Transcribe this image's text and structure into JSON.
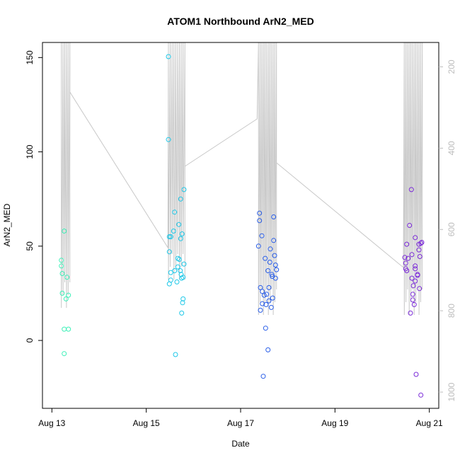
{
  "chart_data": {
    "type": "scatter",
    "title": "ATOM1 Northbound ArN2_MED",
    "xlabel": "Date",
    "ylabel": "ArN2_MED",
    "x_ticks": [
      "Aug 13",
      "Aug 15",
      "Aug 17",
      "Aug 19",
      "Aug 21"
    ],
    "y_ticks": [
      0,
      50,
      100,
      150
    ],
    "y2_ticks": [
      200,
      400,
      600,
      800,
      1000
    ],
    "xlim_days": [
      12.8,
      21.2
    ],
    "ylim": [
      -36,
      158
    ],
    "y2lim": [
      1040,
      140
    ],
    "colors": {
      "axis": "#000000",
      "secondary_axis": "#bdbdbd",
      "depth_line": "#c8c8c8"
    },
    "scatter": [
      {
        "color": "#3ef0b8",
        "points": [
          [
            13.2,
            42.5
          ],
          [
            13.2,
            39.5
          ],
          [
            13.22,
            35.5
          ],
          [
            13.22,
            25
          ],
          [
            13.26,
            58
          ],
          [
            13.26,
            6
          ],
          [
            13.26,
            -7
          ],
          [
            13.3,
            22
          ],
          [
            13.32,
            33.5
          ],
          [
            13.35,
            6
          ],
          [
            13.35,
            24
          ]
        ]
      },
      {
        "color": "#1ec8e8",
        "points": [
          [
            15.47,
            150.5
          ],
          [
            15.47,
            106.5
          ],
          [
            15.49,
            55
          ],
          [
            15.49,
            47
          ],
          [
            15.49,
            30
          ],
          [
            15.52,
            55
          ],
          [
            15.52,
            36
          ],
          [
            15.52,
            32
          ],
          [
            15.58,
            58
          ],
          [
            15.6,
            68
          ],
          [
            15.6,
            37
          ],
          [
            15.62,
            -7.5
          ],
          [
            15.65,
            31
          ],
          [
            15.67,
            43.5
          ],
          [
            15.67,
            39
          ],
          [
            15.69,
            61.5
          ],
          [
            15.7,
            43
          ],
          [
            15.72,
            37
          ],
          [
            15.73,
            54
          ],
          [
            15.73,
            75
          ],
          [
            15.74,
            35
          ],
          [
            15.75,
            33
          ],
          [
            15.75,
            14.5
          ],
          [
            15.76,
            56.5
          ],
          [
            15.77,
            20
          ],
          [
            15.78,
            22
          ],
          [
            15.8,
            80
          ],
          [
            15.8,
            40.5
          ],
          [
            15.78,
            33.5
          ]
        ]
      },
      {
        "color": "#2a5ee8",
        "points": [
          [
            17.38,
            50
          ],
          [
            17.4,
            67.5
          ],
          [
            17.4,
            63.5
          ],
          [
            17.42,
            16
          ],
          [
            17.42,
            28
          ],
          [
            17.45,
            55.5
          ],
          [
            17.46,
            26
          ],
          [
            17.46,
            19.5
          ],
          [
            17.48,
            -19
          ],
          [
            17.5,
            24
          ],
          [
            17.52,
            43.5
          ],
          [
            17.53,
            6.5
          ],
          [
            17.54,
            19
          ],
          [
            17.55,
            24.5
          ],
          [
            17.58,
            37
          ],
          [
            17.58,
            -5
          ],
          [
            17.6,
            21
          ],
          [
            17.6,
            28
          ],
          [
            17.62,
            41.5
          ],
          [
            17.63,
            48.5
          ],
          [
            17.65,
            17.5
          ],
          [
            17.66,
            35
          ],
          [
            17.67,
            34
          ],
          [
            17.7,
            65.5
          ],
          [
            17.7,
            53
          ],
          [
            17.72,
            45
          ],
          [
            17.74,
            40
          ],
          [
            17.74,
            33
          ],
          [
            17.76,
            37.5
          ],
          [
            17.68,
            22.5
          ]
        ]
      },
      {
        "color": "#7b2bd8",
        "points": [
          [
            20.48,
            44
          ],
          [
            20.5,
            41
          ],
          [
            20.5,
            38
          ],
          [
            20.52,
            37
          ],
          [
            20.52,
            51
          ],
          [
            20.55,
            43.5
          ],
          [
            20.58,
            61
          ],
          [
            20.6,
            14.5
          ],
          [
            20.62,
            80
          ],
          [
            20.63,
            45.5
          ],
          [
            20.63,
            33
          ],
          [
            20.65,
            24.5
          ],
          [
            20.65,
            21.5
          ],
          [
            20.66,
            29
          ],
          [
            20.68,
            19
          ],
          [
            20.7,
            39.5
          ],
          [
            20.7,
            31.5
          ],
          [
            20.7,
            38
          ],
          [
            20.7,
            54.5
          ],
          [
            20.72,
            -18
          ],
          [
            20.75,
            35
          ],
          [
            20.75,
            34.5
          ],
          [
            20.78,
            48
          ],
          [
            20.78,
            51
          ],
          [
            20.79,
            27.5
          ],
          [
            20.8,
            44.5
          ],
          [
            20.82,
            51.5
          ],
          [
            20.82,
            -29
          ],
          [
            20.84,
            52
          ]
        ]
      }
    ]
  }
}
